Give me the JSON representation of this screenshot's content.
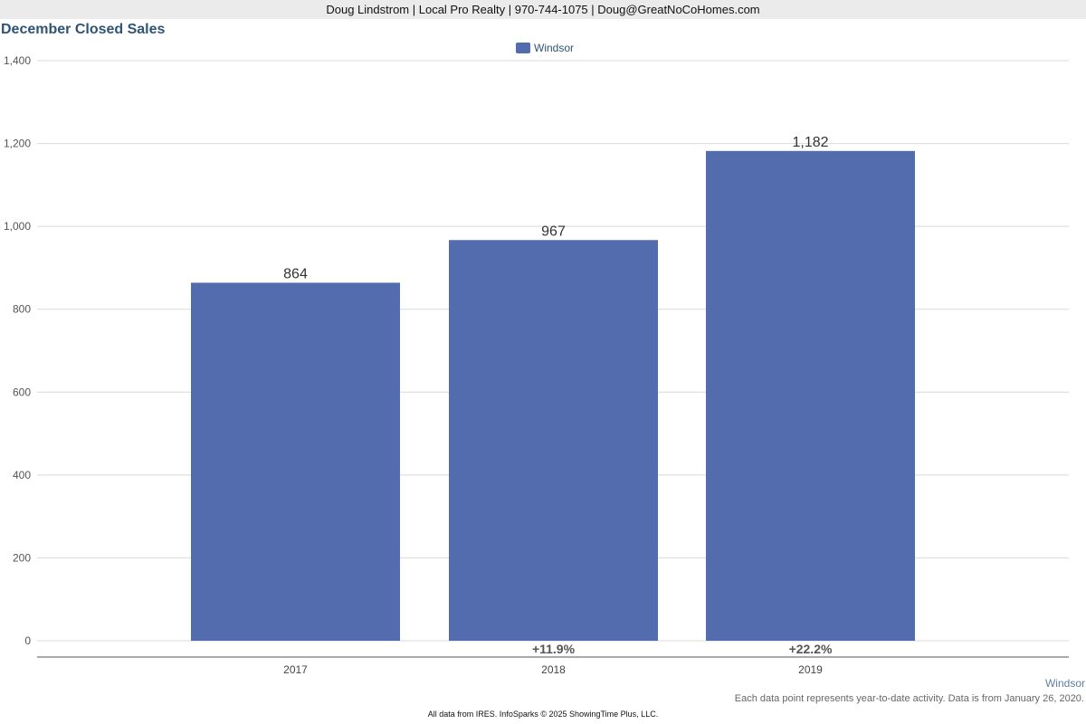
{
  "header": {
    "contact_line": "Doug Lindstrom | Local Pro Realty | 970-744-1075 | Doug@GreatNoCoHomes.com"
  },
  "chart_data": {
    "type": "bar",
    "title": "December Closed Sales",
    "xlabel": "",
    "ylabel": "",
    "categories": [
      "2017",
      "2018",
      "2019"
    ],
    "series": [
      {
        "name": "Windsor",
        "color": "#536cae",
        "values": [
          864,
          967,
          1182
        ],
        "value_labels": [
          "864",
          "967",
          "1,182"
        ]
      }
    ],
    "change_labels": [
      "",
      "+11.9%",
      "+22.2%"
    ],
    "ylim": [
      0,
      1400
    ],
    "yticks": [
      0,
      200,
      400,
      600,
      800,
      1000,
      1200,
      1400
    ],
    "ytick_labels": [
      "0",
      "200",
      "400",
      "600",
      "800",
      "1,000",
      "1,200",
      "1,400"
    ],
    "grid": true,
    "legend_position": "top-center"
  },
  "footer": {
    "location": "Windsor",
    "note": "Each data point represents year-to-date activity. Data is from January 26, 2020.",
    "credit": "All data from IRES. InfoSparks © 2025 ShowingTime Plus, LLC."
  }
}
